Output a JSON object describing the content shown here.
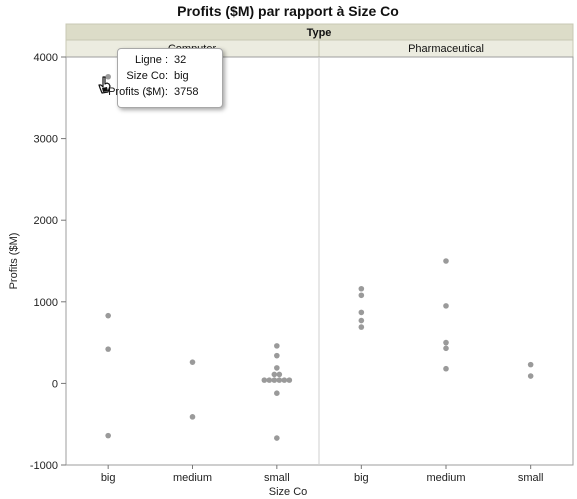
{
  "chart_data": {
    "type": "scatter",
    "title": "Profits ($M) par rapport à Size Co",
    "xlabel": "Size Co",
    "ylabel": "Profits ($M)",
    "ylim": [
      -1000,
      4000
    ],
    "yticks": [
      -1000,
      0,
      1000,
      2000,
      3000,
      4000
    ],
    "group_header": "Type",
    "marker_color": "#9a9a9a",
    "panels": [
      {
        "name": "Computer",
        "categories": [
          "big",
          "medium",
          "small"
        ],
        "points": [
          {
            "x": "big",
            "y": 3758
          },
          {
            "x": "big",
            "y": 830
          },
          {
            "x": "big",
            "y": 420
          },
          {
            "x": "big",
            "y": -640
          },
          {
            "x": "medium",
            "y": 260
          },
          {
            "x": "medium",
            "y": -410
          },
          {
            "x": "small",
            "y": 460
          },
          {
            "x": "small",
            "y": 340
          },
          {
            "x": "small",
            "y": 190
          },
          {
            "x": "small",
            "y": 110
          },
          {
            "x": "small",
            "y": 110
          },
          {
            "x": "small",
            "y": 40
          },
          {
            "x": "small",
            "y": 40
          },
          {
            "x": "small",
            "y": 40
          },
          {
            "x": "small",
            "y": 40
          },
          {
            "x": "small",
            "y": 40
          },
          {
            "x": "small",
            "y": 40
          },
          {
            "x": "small",
            "y": -120
          },
          {
            "x": "small",
            "y": -670
          }
        ]
      },
      {
        "name": "Pharmaceutical",
        "categories": [
          "big",
          "medium",
          "small"
        ],
        "points": [
          {
            "x": "big",
            "y": 1160
          },
          {
            "x": "big",
            "y": 1080
          },
          {
            "x": "big",
            "y": 870
          },
          {
            "x": "big",
            "y": 770
          },
          {
            "x": "big",
            "y": 690
          },
          {
            "x": "medium",
            "y": 1500
          },
          {
            "x": "medium",
            "y": 950
          },
          {
            "x": "medium",
            "y": 500
          },
          {
            "x": "medium",
            "y": 430
          },
          {
            "x": "medium",
            "y": 180
          },
          {
            "x": "small",
            "y": 230
          },
          {
            "x": "small",
            "y": 90
          }
        ]
      }
    ]
  },
  "tooltip": {
    "rows": [
      {
        "label": "Ligne :",
        "value": "32"
      },
      {
        "label": "Size Co:",
        "value": "big"
      },
      {
        "label": "Profits ($M):",
        "value": "3758"
      }
    ]
  }
}
